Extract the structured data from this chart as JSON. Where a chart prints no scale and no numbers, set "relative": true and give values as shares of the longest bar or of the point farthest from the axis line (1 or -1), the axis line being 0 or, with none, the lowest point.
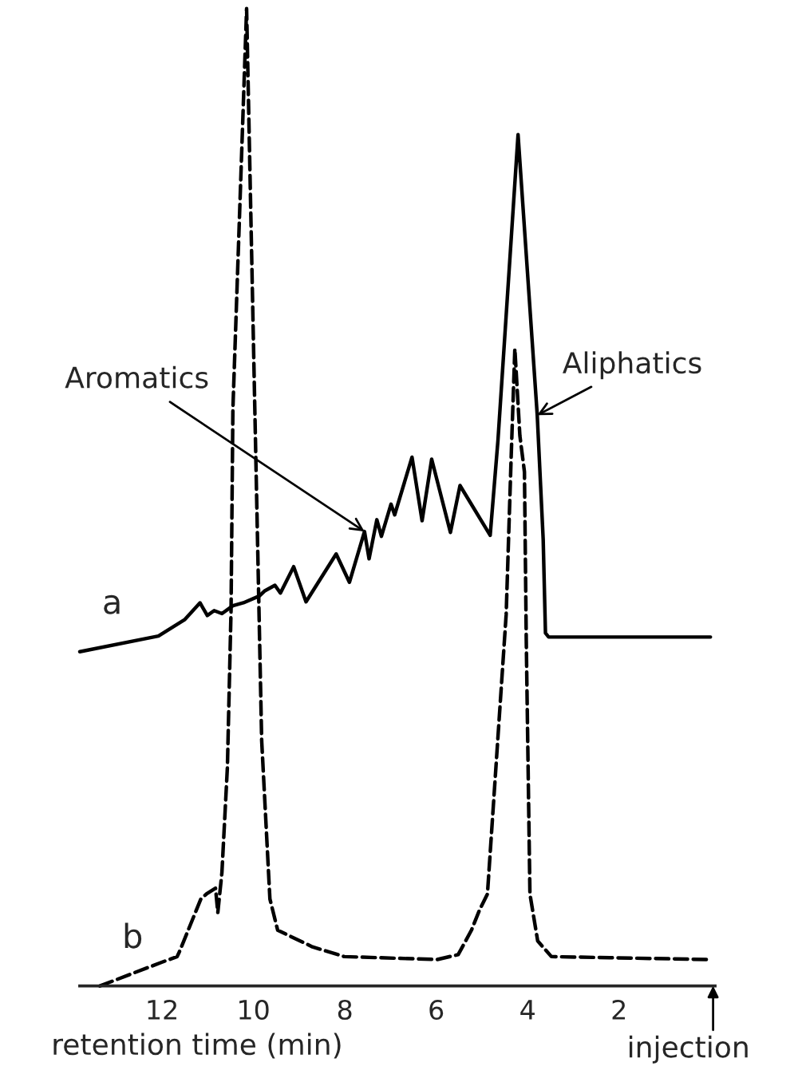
{
  "chart_data": {
    "type": "line",
    "relative": true,
    "xlabel": "retention time (min)",
    "xlim": [
      13.8,
      -0.1
    ],
    "xticks": [
      12,
      10,
      8,
      6,
      4,
      2
    ],
    "grid": false,
    "legend": false,
    "marker": "none",
    "annotations": [
      {
        "text": "Aromatics",
        "x": 7.57,
        "y": 0.465
      },
      {
        "text": "Aliphatics",
        "x": 3.79,
        "y": 0.584
      },
      "injection"
    ],
    "series": [
      {
        "name": "a",
        "color": "#000000",
        "line_style": "solid",
        "x": [
          13.8,
          12.08,
          11.5,
          11.17,
          11.01,
          10.86,
          10.69,
          10.45,
          10.22,
          9.87,
          9.76,
          9.53,
          9.41,
          9.12,
          8.85,
          8.19,
          7.9,
          7.57,
          7.47,
          7.3,
          7.2,
          6.99,
          6.91,
          6.53,
          6.31,
          6.1,
          5.69,
          5.48,
          4.82,
          4.65,
          4.21,
          3.79,
          3.66,
          3.61,
          3.54,
          0
        ],
        "values": [
          0.342,
          0.358,
          0.375,
          0.392,
          0.379,
          0.384,
          0.381,
          0.389,
          0.392,
          0.399,
          0.404,
          0.41,
          0.402,
          0.429,
          0.393,
          0.442,
          0.413,
          0.465,
          0.437,
          0.477,
          0.46,
          0.493,
          0.482,
          0.541,
          0.476,
          0.539,
          0.464,
          0.512,
          0.461,
          0.558,
          0.871,
          0.584,
          0.457,
          0.361,
          0.357,
          0.357
        ]
      },
      {
        "name": "b",
        "color": "#000000",
        "line_style": "dashed",
        "x": [
          13.36,
          12.02,
          11.67,
          11.62,
          11.15,
          11.03,
          10.83,
          10.78,
          10.69,
          10.57,
          10.49,
          10.45,
          10.15,
          9.97,
          9.82,
          9.64,
          9.47,
          8.71,
          8.01,
          5.98,
          5.52,
          5.23,
          5.05,
          4.88,
          4.47,
          4.36,
          4.28,
          4.17,
          4.07,
          4.03,
          3.95,
          3.78,
          3.48,
          0
        ],
        "values": [
          0,
          0.024,
          0.03,
          0.035,
          0.089,
          0.094,
          0.1,
          0.075,
          0.116,
          0.224,
          0.385,
          0.59,
          1.0,
          0.59,
          0.251,
          0.089,
          0.057,
          0.04,
          0.03,
          0.027,
          0.032,
          0.057,
          0.078,
          0.094,
          0.38,
          0.542,
          0.652,
          0.563,
          0.526,
          0.353,
          0.094,
          0.046,
          0.03,
          0.027
        ]
      }
    ]
  }
}
